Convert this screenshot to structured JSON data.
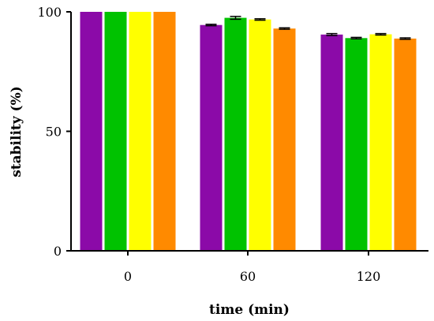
{
  "chart_data": {
    "type": "bar",
    "title": "",
    "xlabel": "time (min)",
    "ylabel": "stability (%)",
    "categories": [
      "0",
      "60",
      "120"
    ],
    "ylim": [
      0,
      100
    ],
    "yticks": [
      "0",
      "50",
      "100"
    ],
    "grid": false,
    "legend": "none",
    "series": [
      {
        "color": "#8b0aa8",
        "values": [
          100,
          94.5,
          90.5
        ],
        "errors": [
          0,
          0.3,
          0.4
        ]
      },
      {
        "color": "#00c200",
        "values": [
          100,
          97.5,
          89
        ],
        "errors": [
          0,
          0.6,
          0.3
        ]
      },
      {
        "color": "#ffff00",
        "values": [
          100,
          96.8,
          90.6
        ],
        "errors": [
          0,
          0.3,
          0.3
        ]
      },
      {
        "color": "#ff8a00",
        "values": [
          100,
          93,
          88.8
        ],
        "errors": [
          0,
          0.3,
          0.3
        ]
      }
    ]
  }
}
